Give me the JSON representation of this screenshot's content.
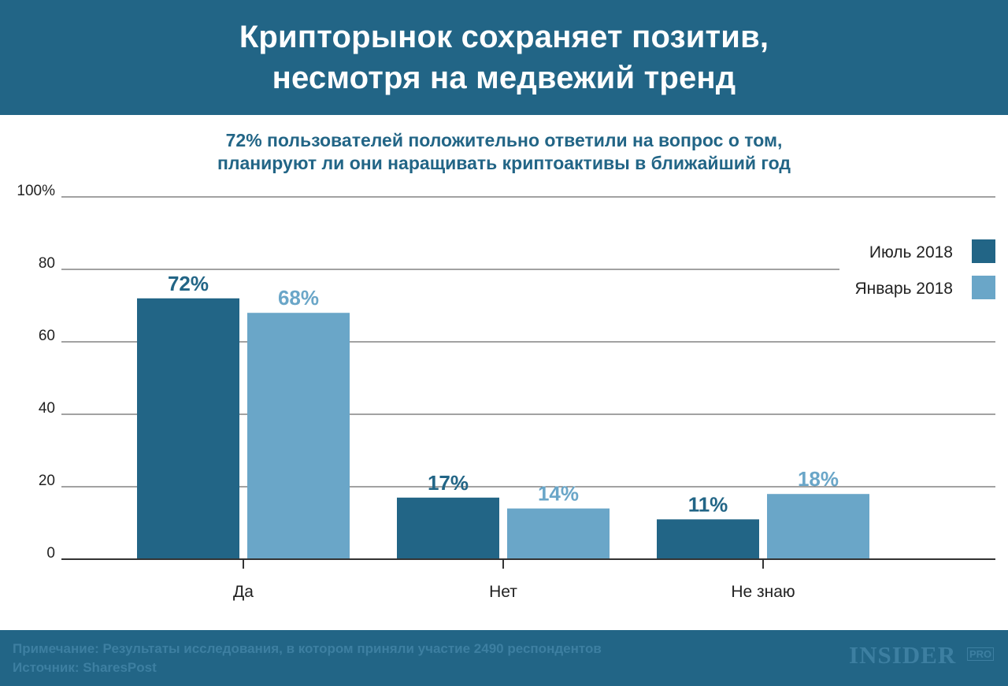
{
  "header": {
    "title_line1": "Крипторынок сохраняет позитив,",
    "title_line2": "несмотря на медвежий тренд"
  },
  "subtitle": {
    "line1": "72% пользователей положительно ответили на вопрос о том,",
    "line2": "планируют ли они наращивать криптоактивы в ближайший год"
  },
  "footer": {
    "note": "Примечание: Результаты исследования, в котором приняли участие 2490 респондентов",
    "source": "Источник: SharesPost",
    "logo": "INSIDER",
    "logo_sub": "PRO"
  },
  "colors": {
    "dark": "#226586",
    "light": "#6aa6c8",
    "axis": "#333333",
    "grid": "#444444"
  },
  "chart_data": {
    "type": "bar",
    "title": "Крипторынок сохраняет позитив, несмотря на медвежий тренд",
    "subtitle": "72% пользователей положительно ответили на вопрос о том, планируют ли они наращивать криптоактивы в ближайший год",
    "categories": [
      "Да",
      "Нет",
      "Не знаю"
    ],
    "series": [
      {
        "name": "Июль 2018",
        "values": [
          72,
          17,
          11
        ],
        "labels": [
          "72%",
          "17%",
          "11%"
        ],
        "color": "#226586"
      },
      {
        "name": "Январь 2018",
        "values": [
          68,
          14,
          18
        ],
        "labels": [
          "68%",
          "14%",
          "18%"
        ],
        "color": "#6aa6c8"
      }
    ],
    "yticks": [
      0,
      20,
      40,
      60,
      80,
      100
    ],
    "ytick_labels": [
      "0",
      "20",
      "40",
      "60",
      "80",
      "100%"
    ],
    "ylim": [
      0,
      100
    ],
    "grid": true,
    "legend_position": "top-right",
    "xlabel": "",
    "ylabel": ""
  }
}
